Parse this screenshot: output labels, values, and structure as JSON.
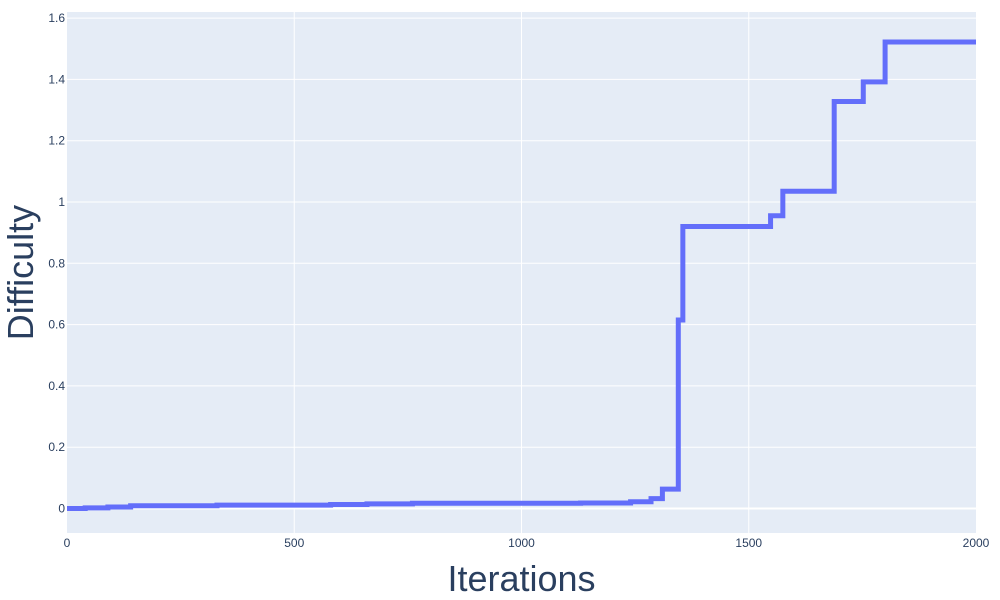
{
  "chart_data": {
    "type": "line",
    "xlabel": "Iterations",
    "ylabel": "Difficulty",
    "xlim": [
      0,
      2000
    ],
    "ylim": [
      -0.08,
      1.62
    ],
    "grid": true,
    "x_ticks": [
      0,
      500,
      1000,
      1500,
      2000
    ],
    "y_ticks": [
      0,
      0.2,
      0.4,
      0.6,
      0.8,
      1,
      1.2,
      1.4,
      1.6
    ],
    "x_tick_labels": [
      "0",
      "500",
      "1000",
      "1500",
      "2000"
    ],
    "y_tick_labels": [
      "0",
      "0.2",
      "0.4",
      "0.6",
      "0.8",
      "1",
      "1.2",
      "1.4",
      "1.6"
    ],
    "colors": {
      "line": "#636efa",
      "plot_bg": "#e5ecf6",
      "grid": "#ffffff",
      "text": "#2a3f5f"
    },
    "series": [
      {
        "step": "post",
        "x": [
          0,
          40,
          90,
          140,
          330,
          580,
          660,
          760,
          1130,
          1240,
          1285,
          1310,
          1345,
          1355,
          1548,
          1575,
          1688,
          1752,
          1800,
          2000
        ],
        "y": [
          0.0,
          0.002,
          0.005,
          0.009,
          0.011,
          0.013,
          0.015,
          0.017,
          0.018,
          0.022,
          0.032,
          0.063,
          0.615,
          0.92,
          0.955,
          1.035,
          1.328,
          1.392,
          1.522,
          1.522
        ]
      }
    ]
  }
}
